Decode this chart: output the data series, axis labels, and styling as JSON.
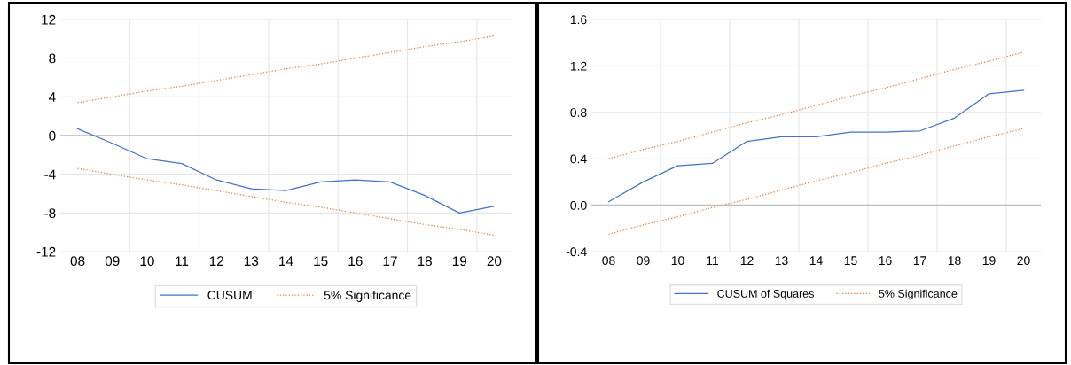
{
  "chart_data": [
    {
      "type": "line",
      "categories": [
        "08",
        "09",
        "10",
        "11",
        "12",
        "13",
        "14",
        "15",
        "16",
        "17",
        "18",
        "19",
        "20"
      ],
      "series": [
        {
          "name": "CUSUM",
          "color": "#4472c4",
          "line_style": "solid",
          "values": [
            0.7,
            -0.8,
            -2.4,
            -2.9,
            -4.6,
            -5.5,
            -5.7,
            -4.8,
            -4.6,
            -4.8,
            -6.2,
            -8.0,
            -7.3
          ]
        },
        {
          "name": "5% Significance",
          "color": "#ed7d31",
          "line_style": "dotted",
          "values": [
            3.4,
            4.0,
            4.6,
            5.1,
            5.7,
            6.3,
            6.9,
            7.4,
            8.0,
            8.6,
            9.2,
            9.7,
            10.3
          ]
        },
        {
          "color": "#ed7d31",
          "line_style": "dotted",
          "values": [
            -3.4,
            -4.0,
            -4.6,
            -5.1,
            -5.7,
            -6.3,
            -6.9,
            -7.4,
            -8.0,
            -8.6,
            -9.2,
            -9.7,
            -10.3
          ]
        }
      ],
      "ylim": [
        -12,
        12
      ],
      "yticks": [
        -12,
        -8,
        -4,
        0,
        4,
        8,
        12
      ],
      "grid": true,
      "legend": "bottom",
      "marker": "none",
      "ref_lines": [
        {
          "axis": "y",
          "value": 0,
          "color": "#bfbfbf"
        }
      ]
    },
    {
      "type": "line",
      "categories": [
        "08",
        "09",
        "10",
        "11",
        "12",
        "13",
        "14",
        "15",
        "16",
        "17",
        "18",
        "19",
        "20"
      ],
      "series": [
        {
          "name": "CUSUM of Squares",
          "color": "#4472c4",
          "line_style": "solid",
          "values": [
            0.03,
            0.2,
            0.34,
            0.36,
            0.55,
            0.59,
            0.59,
            0.63,
            0.63,
            0.64,
            0.75,
            0.96,
            0.99
          ]
        },
        {
          "name": "5% Significance",
          "color": "#ed7d31",
          "line_style": "dotted",
          "values": [
            0.4,
            0.48,
            0.55,
            0.63,
            0.71,
            0.78,
            0.86,
            0.94,
            1.01,
            1.09,
            1.17,
            1.24,
            1.32
          ]
        },
        {
          "color": "#ed7d31",
          "line_style": "dotted",
          "values": [
            -0.25,
            -0.17,
            -0.1,
            -0.02,
            0.05,
            0.13,
            0.21,
            0.28,
            0.36,
            0.43,
            0.51,
            0.59,
            0.66
          ]
        }
      ],
      "ylim": [
        -0.4,
        1.6
      ],
      "yticks": [
        -0.4,
        {
          "value": 0,
          "label": "0.0"
        },
        0.4,
        0.8,
        1.2,
        1.6
      ],
      "grid": true,
      "legend": "bottom",
      "marker": "none",
      "ref_lines": [
        {
          "axis": "y",
          "value": 0,
          "color": "#bfbfbf"
        }
      ]
    }
  ]
}
